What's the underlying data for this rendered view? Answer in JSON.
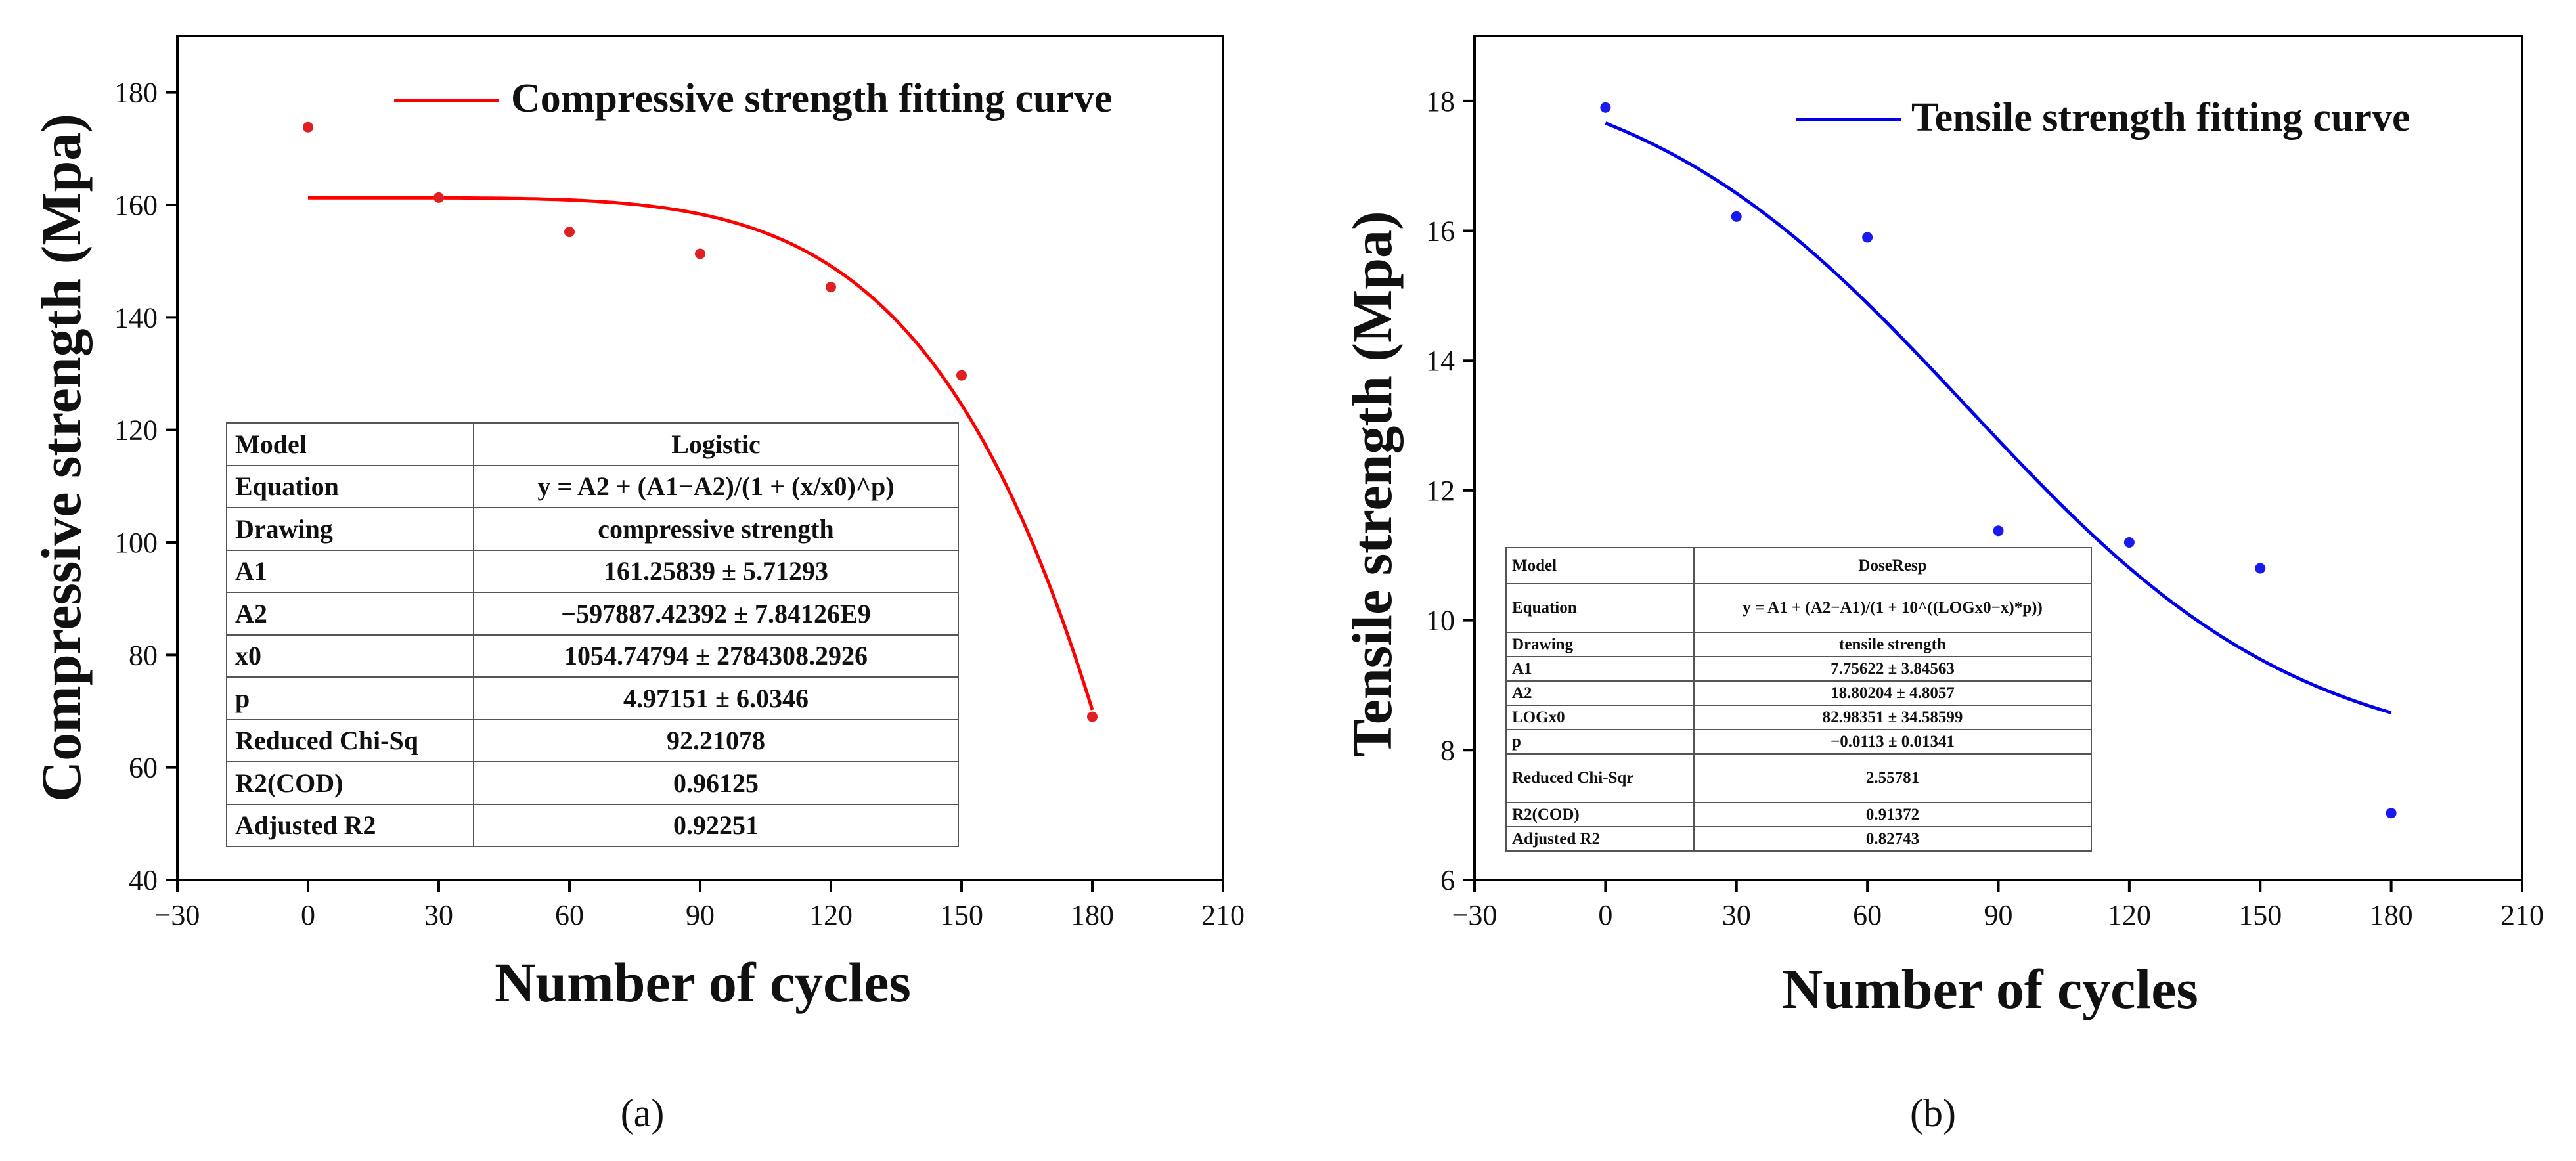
{
  "chart_data": [
    {
      "type": "scatter",
      "panel_label": "(a)",
      "xlabel": "Number of cycles",
      "ylabel": "Compressive strength (Mpa)",
      "xlim": [
        -30,
        210
      ],
      "ylim": [
        40,
        190
      ],
      "xticks": [
        "−30",
        "0",
        "30",
        "60",
        "90",
        "120",
        "150",
        "180",
        "210"
      ],
      "yticks": [
        "40",
        "60",
        "80",
        "100",
        "120",
        "140",
        "160",
        "180"
      ],
      "point_color": "#e02020",
      "x": [
        0,
        30,
        60,
        90,
        120,
        150,
        180
      ],
      "y": [
        173.8,
        161.3,
        155.2,
        151.3,
        145.4,
        129.7,
        69.0
      ],
      "fit": {
        "legend": "Compressive strength fitting curve",
        "color": "#ff0000",
        "model": "logistic",
        "A1": 161.25839,
        "A2": -597887.42392,
        "x0": 1054.74794,
        "p": 4.97151,
        "x_range": [
          0,
          180
        ]
      },
      "table": [
        [
          "Model",
          "Logistic"
        ],
        [
          "Equation",
          "y = A2 + (A1−A2)/(1 + (x/x0)^p)"
        ],
        [
          "Drawing",
          "compressive strength"
        ],
        [
          "A1",
          "161.25839 ± 5.71293"
        ],
        [
          "A2",
          "−597887.42392 ± 7.84126E9"
        ],
        [
          "x0",
          "1054.74794 ± 2784308.2926"
        ],
        [
          "p",
          "4.97151 ± 6.0346"
        ],
        [
          "Reduced Chi-Sq",
          "92.21078"
        ],
        [
          "R2(COD)",
          "0.96125"
        ],
        [
          "Adjusted R2",
          "0.92251"
        ]
      ]
    },
    {
      "type": "scatter",
      "panel_label": "(b)",
      "xlabel": "Number of cycles",
      "ylabel": "Tensile strength (Mpa)",
      "xlim": [
        -30,
        210
      ],
      "ylim": [
        6,
        19
      ],
      "xticks": [
        "−30",
        "0",
        "30",
        "60",
        "90",
        "120",
        "150",
        "180",
        "210"
      ],
      "yticks": [
        "6",
        "8",
        "10",
        "12",
        "14",
        "16",
        "18"
      ],
      "point_color": "#1a1aee",
      "x": [
        0,
        30,
        60,
        90,
        120,
        150,
        180
      ],
      "y": [
        17.9,
        16.22,
        15.9,
        11.38,
        11.2,
        10.8,
        7.03
      ],
      "fit": {
        "legend": "Tensile strength fitting curve",
        "color": "#0000ee",
        "model": "doseresp",
        "A1": 7.75622,
        "A2": 18.80204,
        "LOGx0": 82.98351,
        "p": -0.0113,
        "x_range": [
          0,
          180
        ]
      },
      "table": [
        [
          "Model",
          "DoseResp"
        ],
        [
          "Equation",
          "y = A1 + (A2−A1)/(1 + 10^((LOGx0−x)*p))"
        ],
        [
          "Drawing",
          "tensile strength"
        ],
        [
          "A1",
          "7.75622 ± 3.84563"
        ],
        [
          "A2",
          "18.80204 ± 4.8057"
        ],
        [
          "LOGx0",
          "82.98351 ± 34.58599"
        ],
        [
          "p",
          "−0.0113 ± 0.01341"
        ],
        [
          "Reduced Chi-Sqr",
          "2.55781"
        ],
        [
          "R2(COD)",
          "0.91372"
        ],
        [
          "Adjusted R2",
          "0.82743"
        ]
      ]
    }
  ]
}
